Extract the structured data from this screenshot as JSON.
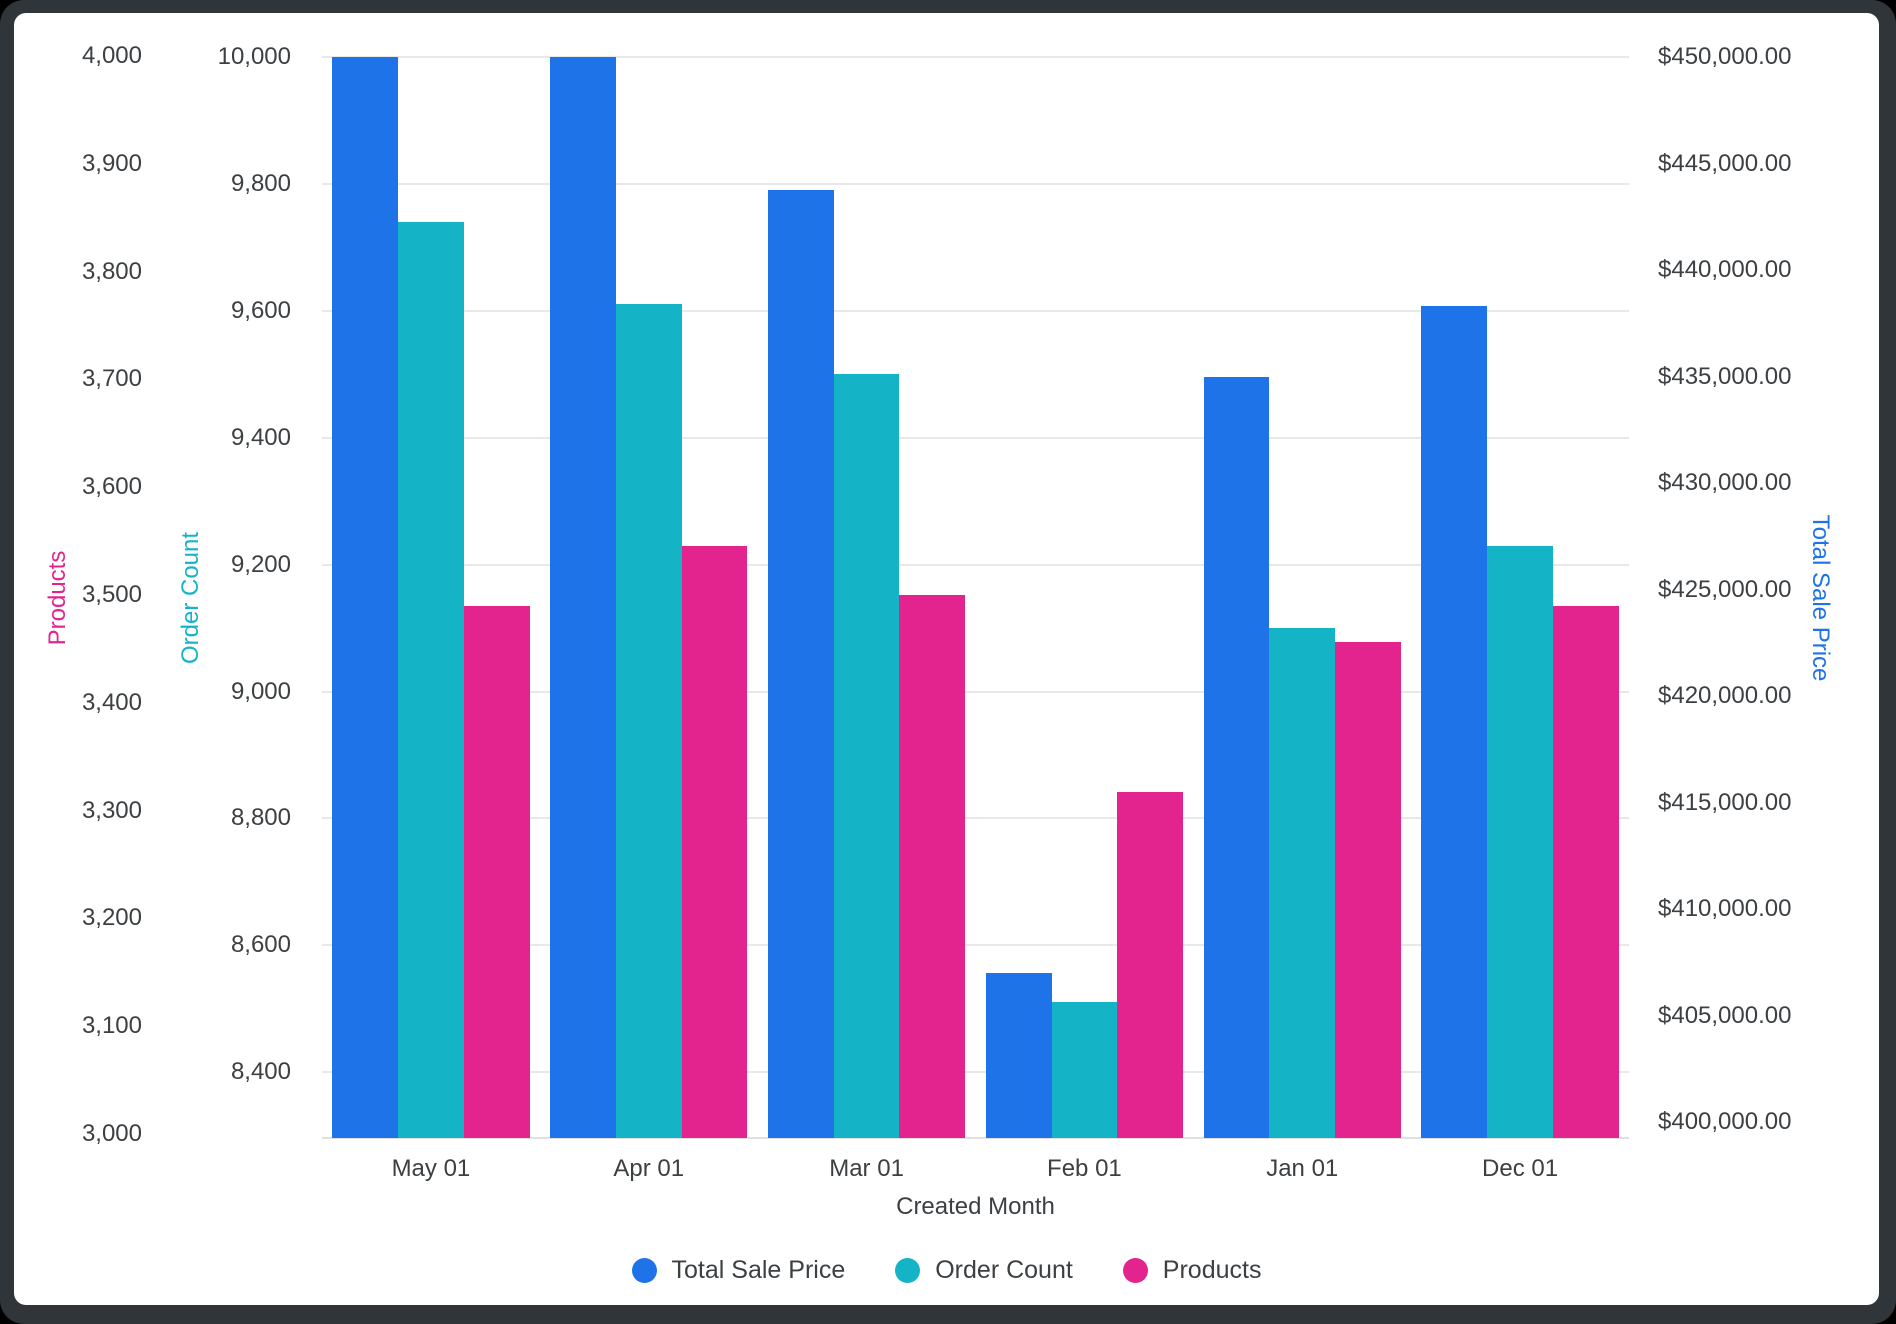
{
  "frame": {
    "outer_background": "#000000",
    "window_frame_color": "#2f3539",
    "card_background": "#ffffff",
    "gridline_color": "#e8e8e8",
    "tick_text_color": "#3c4043"
  },
  "chart_data": {
    "type": "bar",
    "title": "",
    "xlabel": "Created Month",
    "categories": [
      "May 01",
      "Apr 01",
      "Mar 01",
      "Feb 01",
      "Jan 01",
      "Dec 01"
    ],
    "series": [
      {
        "name": "Total Sale Price",
        "axis": "sale",
        "color": "#1e73e8",
        "values": [
          450000,
          450000,
          443750,
          407000,
          435000,
          438300
        ]
      },
      {
        "name": "Order Count",
        "axis": "order",
        "color": "#14b4c6",
        "values": [
          9740,
          9610,
          9500,
          8510,
          9100,
          9230
        ]
      },
      {
        "name": "Products",
        "axis": "products",
        "color": "#e3248f",
        "values": [
          3490,
          3545,
          3500,
          3317,
          3456,
          3490
        ]
      }
    ],
    "legend": [
      "Total Sale Price",
      "Order Count",
      "Products"
    ],
    "legend_position": "bottom",
    "grid": "horizontal, aligned to Order Count ticks",
    "axes": {
      "products": {
        "title": "Products",
        "side": "far-left",
        "color": "#e3248f",
        "min": 3000,
        "max": 4000,
        "ticks": [
          {
            "v": 4000,
            "label": "4,000"
          },
          {
            "v": 3900,
            "label": "3,900"
          },
          {
            "v": 3800,
            "label": "3,800"
          },
          {
            "v": 3700,
            "label": "3,700"
          },
          {
            "v": 3600,
            "label": "3,600"
          },
          {
            "v": 3500,
            "label": "3,500"
          },
          {
            "v": 3400,
            "label": "3,400"
          },
          {
            "v": 3300,
            "label": "3,300"
          },
          {
            "v": 3200,
            "label": "3,200"
          },
          {
            "v": 3100,
            "label": "3,100"
          },
          {
            "v": 3000,
            "label": "3,000"
          }
        ]
      },
      "order": {
        "title": "Order Count",
        "side": "inner-left",
        "color": "#14b4c6",
        "min": 8400,
        "max": 10000,
        "ticks": [
          {
            "v": 10000,
            "label": "10,000"
          },
          {
            "v": 9800,
            "label": "9,800"
          },
          {
            "v": 9600,
            "label": "9,600"
          },
          {
            "v": 9400,
            "label": "9,400"
          },
          {
            "v": 9200,
            "label": "9,200"
          },
          {
            "v": 9000,
            "label": "9,000"
          },
          {
            "v": 8800,
            "label": "8,800"
          },
          {
            "v": 8600,
            "label": "8,600"
          },
          {
            "v": 8400,
            "label": "8,400"
          }
        ]
      },
      "sale": {
        "title": "Total Sale Price",
        "side": "right",
        "color": "#1e73e8",
        "min": 400000,
        "max": 450000,
        "ticks": [
          {
            "v": 450000,
            "label": "$450,000.00"
          },
          {
            "v": 445000,
            "label": "$445,000.00"
          },
          {
            "v": 440000,
            "label": "$440,000.00"
          },
          {
            "v": 435000,
            "label": "$435,000.00"
          },
          {
            "v": 430000,
            "label": "$430,000.00"
          },
          {
            "v": 425000,
            "label": "$425,000.00"
          },
          {
            "v": 420000,
            "label": "$420,000.00"
          },
          {
            "v": 415000,
            "label": "$415,000.00"
          },
          {
            "v": 410000,
            "label": "$410,000.00"
          },
          {
            "v": 405000,
            "label": "$405,000.00"
          },
          {
            "v": 400000,
            "label": "$400,000.00"
          }
        ]
      }
    }
  }
}
